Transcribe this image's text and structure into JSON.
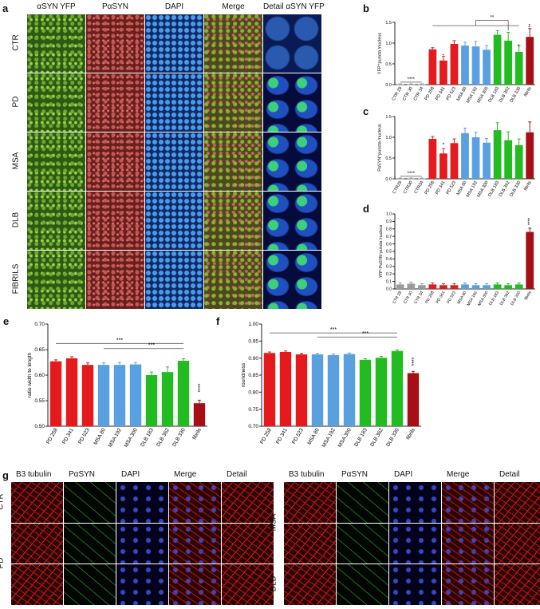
{
  "panel_a": {
    "label": "a",
    "columns": [
      "αSYN YFP",
      "PαSYN",
      "DAPI",
      "Merge",
      "Detail αSYN YFP"
    ],
    "rows": [
      "CTR",
      "PD",
      "MSA",
      "DLB",
      "FIBRILS"
    ]
  },
  "panel_g": {
    "label": "g",
    "left_columns": [
      "B3 tubulin",
      "PαSYN",
      "DAPI",
      "Merge",
      "Detail"
    ],
    "right_columns": [
      "B3 tubulin",
      "PαSYN",
      "DAPI",
      "Merge",
      "Detail"
    ],
    "left_rows": [
      "CTR",
      "PD"
    ],
    "right_rows": [
      "MSA",
      "DLB"
    ]
  },
  "colors": {
    "grey": "#9a9a9a",
    "red": "#e41a1c",
    "blue": "#5aa0e0",
    "green": "#22bb22",
    "darkred": "#a50f15"
  },
  "chart_data": [
    {
      "id": "b",
      "label": "b",
      "type": "bar",
      "ylabel": "YFP⁺puncta /nucleus",
      "ylim": [
        0,
        1.5
      ],
      "yticks": [
        "0.0",
        "0.5",
        "1.0",
        "1.5"
      ],
      "categories": [
        "CTR 28",
        "CTR 30",
        "CTR 34",
        "PD 258",
        "PD 341",
        "PD 523",
        "MSA 80",
        "MSA 192",
        "MSA 300",
        "DLB 183",
        "DLB 362",
        "DLB 330",
        "fibrils"
      ],
      "values": [
        0.01,
        0.01,
        0.01,
        0.85,
        0.58,
        0.98,
        0.94,
        0.92,
        0.84,
        1.2,
        1.06,
        0.79,
        1.15
      ],
      "errors": [
        0.01,
        0.01,
        0.01,
        0.04,
        0.1,
        0.08,
        0.08,
        0.12,
        0.1,
        0.1,
        0.2,
        0.15,
        0.2
      ],
      "colors": [
        "grey",
        "grey",
        "grey",
        "red",
        "red",
        "red",
        "blue",
        "blue",
        "blue",
        "green",
        "green",
        "green",
        "darkred"
      ],
      "annotations": [
        "****",
        "**",
        "*",
        "*",
        "**"
      ]
    },
    {
      "id": "c",
      "label": "c",
      "type": "bar",
      "ylabel": "PαSYN⁺puncta /nucleus",
      "ylim": [
        0,
        1.5
      ],
      "yticks": [
        "0.0",
        "0.5",
        "1.0",
        "1.5"
      ],
      "categories": [
        "CTR28",
        "CTR30",
        "CTR34",
        "PD 258",
        "PD 341",
        "PD 523",
        "MSA 80",
        "MSA 192",
        "MSA 300",
        "DLB 183",
        "DLB 362",
        "DLB 330",
        "fibrils"
      ],
      "values": [
        0.01,
        0.01,
        0.01,
        0.96,
        0.61,
        0.86,
        1.1,
        1.0,
        0.87,
        1.17,
        0.93,
        0.81,
        1.12
      ],
      "errors": [
        0.01,
        0.01,
        0.01,
        0.06,
        0.12,
        0.1,
        0.12,
        0.12,
        0.1,
        0.18,
        0.2,
        0.15,
        0.25
      ],
      "colors": [
        "grey",
        "grey",
        "grey",
        "red",
        "red",
        "red",
        "blue",
        "blue",
        "blue",
        "green",
        "green",
        "green",
        "darkred"
      ],
      "annotations": [
        "****",
        "*"
      ]
    },
    {
      "id": "d",
      "label": "d",
      "type": "bar",
      "ylabel": "YFP⁺PαSYN⁺puncta /nucleus",
      "ylim": [
        0,
        1.0
      ],
      "yticks": [
        "0.0",
        "0.1",
        "0.2",
        "0.3",
        "0.4",
        "0.5",
        "0.6",
        "0.7",
        "0.8",
        "0.9",
        "1.0"
      ],
      "categories": [
        "CTR 28",
        "CTR 30",
        "CTR 34",
        "PD 258",
        "PD 341",
        "PD 523",
        "MSA 80",
        "MSA 192",
        "MSA 300",
        "DLB 183",
        "DLB 362",
        "DLB 330",
        "fibrils"
      ],
      "values": [
        0.06,
        0.07,
        0.05,
        0.06,
        0.05,
        0.05,
        0.06,
        0.05,
        0.05,
        0.06,
        0.05,
        0.06,
        0.76
      ],
      "errors": [
        0.02,
        0.02,
        0.02,
        0.02,
        0.02,
        0.02,
        0.02,
        0.02,
        0.02,
        0.02,
        0.02,
        0.02,
        0.05
      ],
      "colors": [
        "grey",
        "grey",
        "grey",
        "red",
        "red",
        "red",
        "blue",
        "blue",
        "blue",
        "green",
        "green",
        "green",
        "darkred"
      ],
      "annotations": [
        "****"
      ]
    },
    {
      "id": "e",
      "label": "e",
      "type": "bar",
      "ylabel": "ratio width to length",
      "ylim": [
        0.5,
        0.7
      ],
      "yticks": [
        "0.50",
        "0.55",
        "0.60",
        "0.65",
        "0.70"
      ],
      "categories": [
        "PD 258",
        "PD 341",
        "PD 523",
        "MSA 80",
        "MSA 192",
        "MSA 300",
        "DLB 183",
        "DLB 362",
        "DLB 330",
        "fibrils"
      ],
      "values": [
        0.627,
        0.633,
        0.62,
        0.62,
        0.62,
        0.621,
        0.6,
        0.606,
        0.628,
        0.545
      ],
      "errors": [
        0.003,
        0.003,
        0.004,
        0.004,
        0.005,
        0.004,
        0.006,
        0.01,
        0.004,
        0.006
      ],
      "colors": [
        "red",
        "red",
        "red",
        "blue",
        "blue",
        "blue",
        "green",
        "green",
        "green",
        "darkred"
      ],
      "annotations": [
        "***",
        "***",
        "****"
      ]
    },
    {
      "id": "f",
      "label": "f",
      "type": "bar",
      "ylabel": "roundness",
      "ylim": [
        0.7,
        1.0
      ],
      "yticks": [
        "0.70",
        "0.75",
        "0.80",
        "0.85",
        "0.90",
        "0.95",
        "1.00"
      ],
      "categories": [
        "PD 258",
        "PD 341",
        "PD 523",
        "MSA 80",
        "MSA 192",
        "MSA 300",
        "DLB 183",
        "DLB 362",
        "DLB 330",
        "fibrils"
      ],
      "values": [
        0.915,
        0.918,
        0.911,
        0.911,
        0.909,
        0.912,
        0.895,
        0.901,
        0.921,
        0.856
      ],
      "errors": [
        0.003,
        0.003,
        0.003,
        0.003,
        0.003,
        0.003,
        0.003,
        0.004,
        0.003,
        0.005
      ],
      "colors": [
        "red",
        "red",
        "red",
        "blue",
        "blue",
        "blue",
        "green",
        "green",
        "green",
        "darkred"
      ],
      "annotations": [
        "***",
        "***",
        "****"
      ]
    }
  ]
}
